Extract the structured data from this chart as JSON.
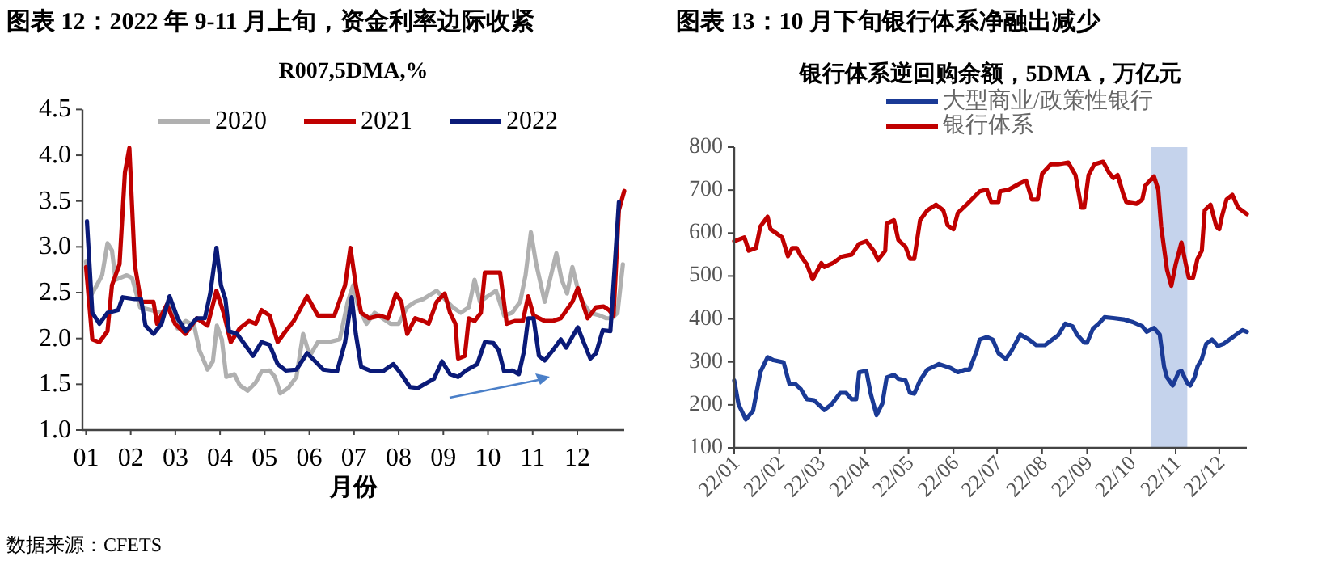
{
  "chart_data": [
    {
      "type": "line",
      "title": "图表 12：2022 年 9-11 月上旬，资金利率边际收紧",
      "subtitle": "R007,5DMA,%",
      "xlabel": "月份",
      "legend": "top",
      "xlim": [
        0.92,
        13.05
      ],
      "xticks": [
        {
          "value": 1,
          "label": "01"
        },
        {
          "value": 2,
          "label": "02"
        },
        {
          "value": 3,
          "label": "03"
        },
        {
          "value": 4,
          "label": "04"
        },
        {
          "value": 5,
          "label": "05"
        },
        {
          "value": 6,
          "label": "06"
        },
        {
          "value": 7,
          "label": "07"
        },
        {
          "value": 8,
          "label": "08"
        },
        {
          "value": 9,
          "label": "09"
        },
        {
          "value": 10,
          "label": "10"
        },
        {
          "value": 11,
          "label": "11"
        },
        {
          "value": 12,
          "label": "12"
        }
      ],
      "ylim": [
        1,
        4.5
      ],
      "yticks": [
        {
          "value": 1,
          "label": "1.0"
        },
        1.5,
        {
          "value": 2,
          "label": "2.0"
        },
        2.5,
        {
          "value": 3,
          "label": "3.0"
        },
        3.5,
        {
          "value": 4,
          "label": "4.0"
        },
        4.5
      ],
      "series": [
        {
          "name": "2020",
          "color": "#b0b0b0",
          "x": [
            1.0,
            1.1,
            1.24,
            1.36,
            1.48,
            1.58,
            1.66,
            1.91,
            2.03,
            2.21,
            2.45,
            2.69,
            2.91,
            3.05,
            3.23,
            3.42,
            3.54,
            3.72,
            3.84,
            3.93,
            4.04,
            4.14,
            4.32,
            4.44,
            4.62,
            4.8,
            4.93,
            5.11,
            5.23,
            5.35,
            5.53,
            5.71,
            5.86,
            6.01,
            6.19,
            6.43,
            6.68,
            6.86,
            6.98,
            7.1,
            7.28,
            7.46,
            7.64,
            7.82,
            8.0,
            8.19,
            8.37,
            8.55,
            8.85,
            9.03,
            9.21,
            9.39,
            9.57,
            9.7,
            9.82,
            9.99,
            10.18,
            10.36,
            10.54,
            10.72,
            10.84,
            10.96,
            11.08,
            11.27,
            11.41,
            11.53,
            11.65,
            11.77,
            11.89,
            11.99,
            12.11,
            12.29,
            12.5,
            12.65,
            12.77,
            12.9,
            13.02
          ],
          "values": [
            2.84,
            2.46,
            2.58,
            2.69,
            3.04,
            2.96,
            2.64,
            2.69,
            2.66,
            2.34,
            2.31,
            2.28,
            2.37,
            2.11,
            2.19,
            2.14,
            1.87,
            1.66,
            1.75,
            2.14,
            1.99,
            1.58,
            1.61,
            1.49,
            1.43,
            1.52,
            1.64,
            1.65,
            1.58,
            1.4,
            1.46,
            1.58,
            2.05,
            1.81,
            1.96,
            1.96,
            1.99,
            2.4,
            2.58,
            2.34,
            2.16,
            2.28,
            2.22,
            2.16,
            2.16,
            2.34,
            2.4,
            2.43,
            2.52,
            2.43,
            2.34,
            2.28,
            2.34,
            2.64,
            2.4,
            2.46,
            2.52,
            2.25,
            2.28,
            2.4,
            2.69,
            3.16,
            2.81,
            2.4,
            2.69,
            2.93,
            2.64,
            2.49,
            2.78,
            2.58,
            2.4,
            2.28,
            2.25,
            2.22,
            2.22,
            2.28,
            2.81
          ]
        },
        {
          "name": "2021",
          "color": "#c00000",
          "x": [
            1.0,
            1.14,
            1.3,
            1.48,
            1.58,
            1.75,
            1.87,
            1.97,
            2.09,
            2.23,
            2.51,
            2.59,
            2.81,
            2.99,
            3.23,
            3.48,
            3.72,
            3.92,
            4.08,
            4.24,
            4.44,
            4.65,
            4.8,
            4.93,
            5.11,
            5.29,
            5.47,
            5.65,
            5.95,
            6.19,
            6.37,
            6.56,
            6.8,
            6.92,
            7.04,
            7.16,
            7.34,
            7.58,
            7.76,
            7.94,
            8.06,
            8.19,
            8.37,
            8.55,
            8.67,
            8.85,
            9.03,
            9.15,
            9.27,
            9.33,
            9.48,
            9.57,
            9.7,
            9.84,
            9.93,
            10.12,
            10.27,
            10.42,
            10.6,
            10.78,
            10.9,
            11.02,
            11.27,
            11.45,
            11.63,
            11.89,
            12.01,
            12.11,
            12.23,
            12.42,
            12.59,
            12.71,
            12.81,
            12.93,
            13.05
          ],
          "values": [
            2.78,
            1.99,
            1.96,
            2.08,
            2.58,
            2.81,
            3.81,
            4.08,
            2.81,
            2.4,
            2.4,
            2.16,
            2.37,
            2.16,
            2.05,
            2.22,
            2.14,
            2.52,
            2.28,
            1.96,
            2.11,
            2.19,
            2.16,
            2.31,
            2.25,
            1.96,
            2.08,
            2.19,
            2.46,
            2.25,
            2.25,
            2.25,
            2.58,
            2.99,
            2.58,
            2.28,
            2.22,
            2.25,
            2.22,
            2.49,
            2.4,
            2.05,
            2.22,
            2.19,
            2.16,
            2.4,
            2.49,
            2.28,
            2.16,
            1.78,
            1.81,
            2.22,
            2.19,
            2.28,
            2.72,
            2.72,
            2.72,
            2.16,
            2.19,
            2.19,
            2.46,
            2.25,
            2.19,
            2.19,
            2.22,
            2.4,
            2.55,
            2.4,
            2.22,
            2.34,
            2.35,
            2.31,
            2.25,
            3.4,
            3.61
          ]
        },
        {
          "name": "2022",
          "color": "#0a1a78",
          "x": [
            1.02,
            1.14,
            1.3,
            1.48,
            1.72,
            1.82,
            2.09,
            2.23,
            2.33,
            2.51,
            2.69,
            2.87,
            3.05,
            3.23,
            3.48,
            3.66,
            3.78,
            3.92,
            4.02,
            4.12,
            4.2,
            4.38,
            4.56,
            4.74,
            4.93,
            5.11,
            5.29,
            5.47,
            5.71,
            5.95,
            6.13,
            6.31,
            6.62,
            6.8,
            6.95,
            7.04,
            7.16,
            7.4,
            7.64,
            7.88,
            8.06,
            8.25,
            8.43,
            8.61,
            8.79,
            8.97,
            9.15,
            9.33,
            9.51,
            9.76,
            9.93,
            10.12,
            10.24,
            10.36,
            10.54,
            10.69,
            10.81,
            10.9,
            11.02,
            11.14,
            11.27,
            11.45,
            11.63,
            11.75,
            11.89,
            12.01,
            12.14,
            12.29,
            12.42,
            12.57,
            12.74,
            12.84,
            12.93
          ],
          "values": [
            3.28,
            2.28,
            2.16,
            2.28,
            2.31,
            2.45,
            2.43,
            2.43,
            2.14,
            2.05,
            2.16,
            2.46,
            2.22,
            2.08,
            2.22,
            2.22,
            2.49,
            2.99,
            2.58,
            2.43,
            2.08,
            2.05,
            1.93,
            1.81,
            1.96,
            1.93,
            1.72,
            1.65,
            1.66,
            1.84,
            1.75,
            1.66,
            1.64,
            1.96,
            2.45,
            2.05,
            1.69,
            1.64,
            1.64,
            1.72,
            1.61,
            1.47,
            1.46,
            1.51,
            1.56,
            1.75,
            1.61,
            1.58,
            1.65,
            1.72,
            1.96,
            1.95,
            1.87,
            1.64,
            1.65,
            1.61,
            1.87,
            2.22,
            2.22,
            1.81,
            1.76,
            1.87,
            1.99,
            1.9,
            2.02,
            2.12,
            1.96,
            1.78,
            1.84,
            2.09,
            2.08,
            2.81,
            3.49
          ]
        }
      ],
      "annotations": [
        "数据来源：CFETS"
      ]
    },
    {
      "type": "line",
      "title": "图表 13：10 月下旬银行体系净融出减少",
      "subtitle": "银行体系逆回购余额，5DMA，万亿元",
      "legend": "top",
      "xlim": [
        "2022-01-01",
        "2022-12-20"
      ],
      "xticks": [
        {
          "value": "2022-01-01",
          "label": "22/01"
        },
        {
          "value": "2022-02-01",
          "label": "22/02"
        },
        {
          "value": "2022-03-01",
          "label": "22/03"
        },
        {
          "value": "2022-04-01",
          "label": "22/04"
        },
        {
          "value": "2022-05-01",
          "label": "22/05"
        },
        {
          "value": "2022-06-01",
          "label": "22/06"
        },
        {
          "value": "2022-07-01",
          "label": "22/07"
        },
        {
          "value": "2022-08-01",
          "label": "22/08"
        },
        {
          "value": "2022-09-01",
          "label": "22/09"
        },
        {
          "value": "2022-10-01",
          "label": "22/10"
        },
        {
          "value": "2022-11-01",
          "label": "22/11"
        },
        {
          "value": "2022-12-01",
          "label": "22/12"
        }
      ],
      "ylim": [
        100,
        800
      ],
      "yticks": [
        100,
        200,
        300,
        400,
        500,
        600,
        700,
        800
      ],
      "bands": [
        {
          "axis": "x",
          "from": "2022-10-15",
          "to": "2022-11-09",
          "color": "#c5d3ec"
        }
      ],
      "series": [
        {
          "name": "大型商业/政策性银行",
          "color": "#1a3a96",
          "x": [
            "2022-01-01",
            "2022-01-04",
            "2022-01-09",
            "2022-01-14",
            "2022-01-19",
            "2022-01-24",
            "2022-01-28",
            "2022-02-04",
            "2022-02-08",
            "2022-02-12",
            "2022-02-16",
            "2022-02-20",
            "2022-02-25",
            "2022-03-04",
            "2022-03-09",
            "2022-03-15",
            "2022-03-19",
            "2022-03-23",
            "2022-03-26",
            "2022-03-28",
            "2022-04-02",
            "2022-04-05",
            "2022-04-09",
            "2022-04-13",
            "2022-04-16",
            "2022-04-21",
            "2022-04-24",
            "2022-04-29",
            "2022-05-02",
            "2022-05-05",
            "2022-05-09",
            "2022-05-14",
            "2022-05-22",
            "2022-05-30",
            "2022-06-04",
            "2022-06-09",
            "2022-06-12",
            "2022-06-17",
            "2022-06-19",
            "2022-06-24",
            "2022-06-28",
            "2022-07-02",
            "2022-07-07",
            "2022-07-11",
            "2022-07-17",
            "2022-07-23",
            "2022-07-28",
            "2022-08-03",
            "2022-08-08",
            "2022-08-12",
            "2022-08-17",
            "2022-08-22",
            "2022-08-25",
            "2022-08-30",
            "2022-09-01",
            "2022-09-05",
            "2022-09-09",
            "2022-09-13",
            "2022-09-19",
            "2022-09-26",
            "2022-10-03",
            "2022-10-09",
            "2022-10-12",
            "2022-10-17",
            "2022-10-21",
            "2022-10-24",
            "2022-10-26",
            "2022-10-30",
            "2022-11-03",
            "2022-11-05",
            "2022-11-09",
            "2022-11-11",
            "2022-11-14",
            "2022-11-16",
            "2022-11-19",
            "2022-11-22",
            "2022-11-26",
            "2022-11-30",
            "2022-12-04",
            "2022-12-08",
            "2022-12-12",
            "2022-12-17",
            "2022-12-20"
          ],
          "values": [
            257,
            201,
            166,
            186,
            276,
            311,
            304,
            299,
            249,
            249,
            236,
            213,
            211,
            188,
            201,
            228,
            228,
            213,
            213,
            276,
            279,
            226,
            176,
            203,
            264,
            270,
            261,
            257,
            228,
            226,
            257,
            282,
            295,
            286,
            276,
            282,
            282,
            326,
            352,
            358,
            352,
            320,
            307,
            326,
            364,
            352,
            339,
            339,
            352,
            362,
            389,
            383,
            364,
            345,
            345,
            377,
            389,
            404,
            402,
            399,
            392,
            383,
            370,
            379,
            364,
            289,
            264,
            245,
            276,
            279,
            251,
            245,
            264,
            289,
            307,
            342,
            352,
            337,
            342,
            352,
            362,
            374,
            370
          ]
        },
        {
          "name": "银行体系",
          "color": "#c00000",
          "x": [
            "2022-01-01",
            "2022-01-08",
            "2022-01-11",
            "2022-01-16",
            "2022-01-19",
            "2022-01-24",
            "2022-01-26",
            "2022-02-03",
            "2022-02-07",
            "2022-02-10",
            "2022-02-13",
            "2022-02-16",
            "2022-02-20",
            "2022-02-24",
            "2022-03-02",
            "2022-03-04",
            "2022-03-10",
            "2022-03-16",
            "2022-03-23",
            "2022-03-28",
            "2022-04-02",
            "2022-04-07",
            "2022-04-10",
            "2022-04-15",
            "2022-04-16",
            "2022-04-21",
            "2022-04-24",
            "2022-04-29",
            "2022-05-02",
            "2022-05-05",
            "2022-05-09",
            "2022-05-14",
            "2022-05-20",
            "2022-05-25",
            "2022-05-28",
            "2022-06-01",
            "2022-06-04",
            "2022-06-10",
            "2022-06-19",
            "2022-06-24",
            "2022-06-27",
            "2022-07-02",
            "2022-07-03",
            "2022-07-09",
            "2022-07-17",
            "2022-07-21",
            "2022-07-25",
            "2022-07-29",
            "2022-08-01",
            "2022-08-07",
            "2022-08-12",
            "2022-08-19",
            "2022-08-24",
            "2022-08-28",
            "2022-08-30",
            "2022-09-02",
            "2022-09-06",
            "2022-09-12",
            "2022-09-16",
            "2022-09-19",
            "2022-09-22",
            "2022-09-26",
            "2022-09-28",
            "2022-10-05",
            "2022-10-09",
            "2022-10-11",
            "2022-10-17",
            "2022-10-20",
            "2022-10-22",
            "2022-10-26",
            "2022-10-29",
            "2022-11-01",
            "2022-11-05",
            "2022-11-08",
            "2022-11-10",
            "2022-11-13",
            "2022-11-16",
            "2022-11-19",
            "2022-11-21",
            "2022-11-25",
            "2022-11-29",
            "2022-12-01",
            "2022-12-03",
            "2022-12-06",
            "2022-12-10",
            "2022-12-14",
            "2022-12-20"
          ],
          "values": [
            581,
            590,
            559,
            565,
            615,
            638,
            609,
            590,
            546,
            565,
            565,
            546,
            527,
            492,
            530,
            521,
            530,
            545,
            550,
            575,
            581,
            559,
            537,
            559,
            622,
            630,
            584,
            568,
            540,
            540,
            630,
            653,
            666,
            653,
            618,
            609,
            647,
            666,
            697,
            701,
            672,
            672,
            697,
            701,
            716,
            722,
            678,
            678,
            738,
            760,
            760,
            764,
            735,
            659,
            659,
            735,
            760,
            766,
            741,
            728,
            735,
            690,
            672,
            668,
            678,
            710,
            732,
            701,
            615,
            515,
            477,
            527,
            578,
            527,
            496,
            496,
            540,
            559,
            653,
            666,
            615,
            609,
            641,
            678,
            689,
            659,
            644
          ]
        }
      ]
    }
  ]
}
